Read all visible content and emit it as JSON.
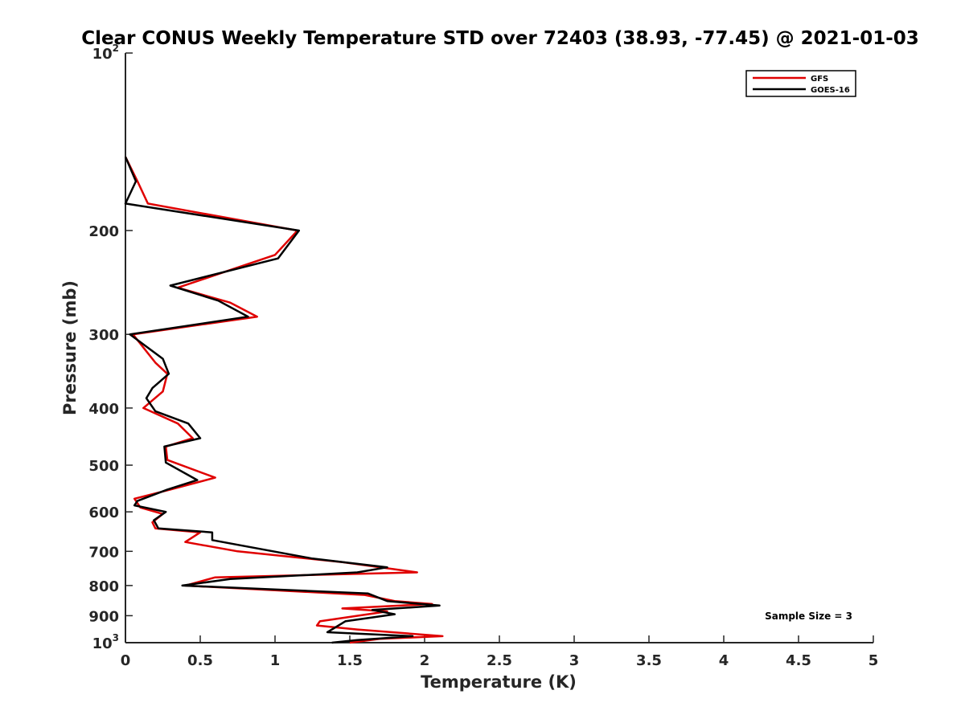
{
  "chart_data": {
    "type": "line",
    "title": "Clear CONUS Weekly Temperature STD over 72403 (38.93, -77.45) @ 2021-01-03",
    "xlabel": "Temperature (K)",
    "ylabel": "Pressure (mb)",
    "xlim": [
      0,
      5
    ],
    "ylim": [
      100,
      1000
    ],
    "yscale": "log",
    "yreversed": true,
    "grid": false,
    "legend_position": "top-right",
    "x_ticks": [
      {
        "value": 0,
        "label": "0"
      },
      {
        "value": 0.5,
        "label": "0.5"
      },
      {
        "value": 1,
        "label": "1"
      },
      {
        "value": 1.5,
        "label": "1.5"
      },
      {
        "value": 2,
        "label": "2"
      },
      {
        "value": 2.5,
        "label": "2.5"
      },
      {
        "value": 3,
        "label": "3"
      },
      {
        "value": 3.5,
        "label": "3.5"
      },
      {
        "value": 4,
        "label": "4"
      },
      {
        "value": 4.5,
        "label": "4.5"
      },
      {
        "value": 5,
        "label": "5"
      }
    ],
    "y_ticks": [
      {
        "value": 100,
        "base": "10",
        "exp": "2"
      },
      {
        "value": 200,
        "label": "200"
      },
      {
        "value": 300,
        "label": "300"
      },
      {
        "value": 400,
        "label": "400"
      },
      {
        "value": 500,
        "label": "500"
      },
      {
        "value": 600,
        "label": "600"
      },
      {
        "value": 700,
        "label": "700"
      },
      {
        "value": 800,
        "label": "800"
      },
      {
        "value": 900,
        "label": "900"
      },
      {
        "value": 1000,
        "base": "10",
        "exp": "3"
      }
    ],
    "series": [
      {
        "name": "GFS",
        "color": "#e00000",
        "points": [
          {
            "x": 0.0,
            "p": 150
          },
          {
            "x": 0.08,
            "p": 165
          },
          {
            "x": 0.15,
            "p": 180
          },
          {
            "x": 1.15,
            "p": 200
          },
          {
            "x": 1.0,
            "p": 220
          },
          {
            "x": 0.35,
            "p": 250
          },
          {
            "x": 0.7,
            "p": 265
          },
          {
            "x": 0.88,
            "p": 280
          },
          {
            "x": 0.05,
            "p": 300
          },
          {
            "x": 0.2,
            "p": 335
          },
          {
            "x": 0.28,
            "p": 350
          },
          {
            "x": 0.25,
            "p": 375
          },
          {
            "x": 0.12,
            "p": 400
          },
          {
            "x": 0.35,
            "p": 425
          },
          {
            "x": 0.45,
            "p": 450
          },
          {
            "x": 0.27,
            "p": 465
          },
          {
            "x": 0.28,
            "p": 490
          },
          {
            "x": 0.6,
            "p": 525
          },
          {
            "x": 0.3,
            "p": 550
          },
          {
            "x": 0.06,
            "p": 570
          },
          {
            "x": 0.1,
            "p": 590
          },
          {
            "x": 0.25,
            "p": 605
          },
          {
            "x": 0.18,
            "p": 625
          },
          {
            "x": 0.2,
            "p": 640
          },
          {
            "x": 0.5,
            "p": 650
          },
          {
            "x": 0.4,
            "p": 675
          },
          {
            "x": 0.75,
            "p": 700
          },
          {
            "x": 1.45,
            "p": 730
          },
          {
            "x": 1.95,
            "p": 760
          },
          {
            "x": 0.6,
            "p": 775
          },
          {
            "x": 0.4,
            "p": 800
          },
          {
            "x": 1.6,
            "p": 830
          },
          {
            "x": 1.8,
            "p": 850
          },
          {
            "x": 2.05,
            "p": 860
          },
          {
            "x": 1.45,
            "p": 875
          },
          {
            "x": 1.75,
            "p": 885
          },
          {
            "x": 1.3,
            "p": 920
          },
          {
            "x": 1.28,
            "p": 935
          },
          {
            "x": 1.55,
            "p": 950
          },
          {
            "x": 2.12,
            "p": 975
          },
          {
            "x": 1.7,
            "p": 985
          },
          {
            "x": 1.5,
            "p": 1000
          }
        ]
      },
      {
        "name": "GOES-16",
        "color": "#000000",
        "points": [
          {
            "x": 0.0,
            "p": 150
          },
          {
            "x": 0.07,
            "p": 165
          },
          {
            "x": 0.0,
            "p": 180
          },
          {
            "x": 1.16,
            "p": 200
          },
          {
            "x": 1.02,
            "p": 223
          },
          {
            "x": 0.3,
            "p": 248
          },
          {
            "x": 0.62,
            "p": 263
          },
          {
            "x": 0.82,
            "p": 280
          },
          {
            "x": 0.03,
            "p": 300
          },
          {
            "x": 0.25,
            "p": 330
          },
          {
            "x": 0.29,
            "p": 350
          },
          {
            "x": 0.18,
            "p": 370
          },
          {
            "x": 0.14,
            "p": 385
          },
          {
            "x": 0.2,
            "p": 405
          },
          {
            "x": 0.42,
            "p": 425
          },
          {
            "x": 0.5,
            "p": 450
          },
          {
            "x": 0.26,
            "p": 465
          },
          {
            "x": 0.27,
            "p": 495
          },
          {
            "x": 0.48,
            "p": 530
          },
          {
            "x": 0.28,
            "p": 550
          },
          {
            "x": 0.08,
            "p": 575
          },
          {
            "x": 0.06,
            "p": 585
          },
          {
            "x": 0.27,
            "p": 600
          },
          {
            "x": 0.19,
            "p": 620
          },
          {
            "x": 0.22,
            "p": 640
          },
          {
            "x": 0.58,
            "p": 650
          },
          {
            "x": 0.58,
            "p": 670
          },
          {
            "x": 1.25,
            "p": 720
          },
          {
            "x": 1.75,
            "p": 745
          },
          {
            "x": 1.55,
            "p": 760
          },
          {
            "x": 0.7,
            "p": 780
          },
          {
            "x": 0.38,
            "p": 800
          },
          {
            "x": 1.62,
            "p": 825
          },
          {
            "x": 1.75,
            "p": 850
          },
          {
            "x": 2.1,
            "p": 865
          },
          {
            "x": 1.65,
            "p": 880
          },
          {
            "x": 1.8,
            "p": 895
          },
          {
            "x": 1.47,
            "p": 920
          },
          {
            "x": 1.35,
            "p": 960
          },
          {
            "x": 1.92,
            "p": 975
          },
          {
            "x": 1.55,
            "p": 990
          },
          {
            "x": 1.38,
            "p": 1000
          }
        ]
      }
    ],
    "annotations": [
      "Sample Size = 3"
    ]
  }
}
